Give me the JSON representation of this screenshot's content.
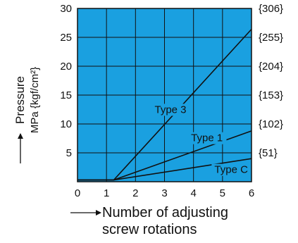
{
  "chart_data": {
    "type": "line",
    "title": "",
    "xlabel_lines": [
      "Number of adjusting",
      "screw rotations"
    ],
    "ylabel_lines": [
      "Pressure",
      "MPa {kgf/cm²}"
    ],
    "xlim": [
      0,
      6
    ],
    "ylim": [
      0,
      30
    ],
    "x_ticks": [
      "0",
      "1",
      "2",
      "3",
      "4",
      "5",
      "6"
    ],
    "y_ticks": [
      "5",
      "10",
      "15",
      "20",
      "25",
      "30"
    ],
    "y2_ticks": [
      "{51}",
      "{102}",
      "{153}",
      "{204}",
      "{255}",
      "{306}"
    ],
    "grid": true,
    "plot_background": "#1aa0e0",
    "line_color": "#111111",
    "series": [
      {
        "name": "Type 3",
        "x": [
          0,
          1.25,
          6
        ],
        "y": [
          0.3,
          0.3,
          26.4
        ]
      },
      {
        "name": "Type 1",
        "x": [
          0,
          1.25,
          6
        ],
        "y": [
          0.3,
          0.3,
          8.8
        ]
      },
      {
        "name": "Type C",
        "x": [
          0,
          1.25,
          6
        ],
        "y": [
          0.3,
          0.3,
          4.0
        ]
      }
    ]
  }
}
